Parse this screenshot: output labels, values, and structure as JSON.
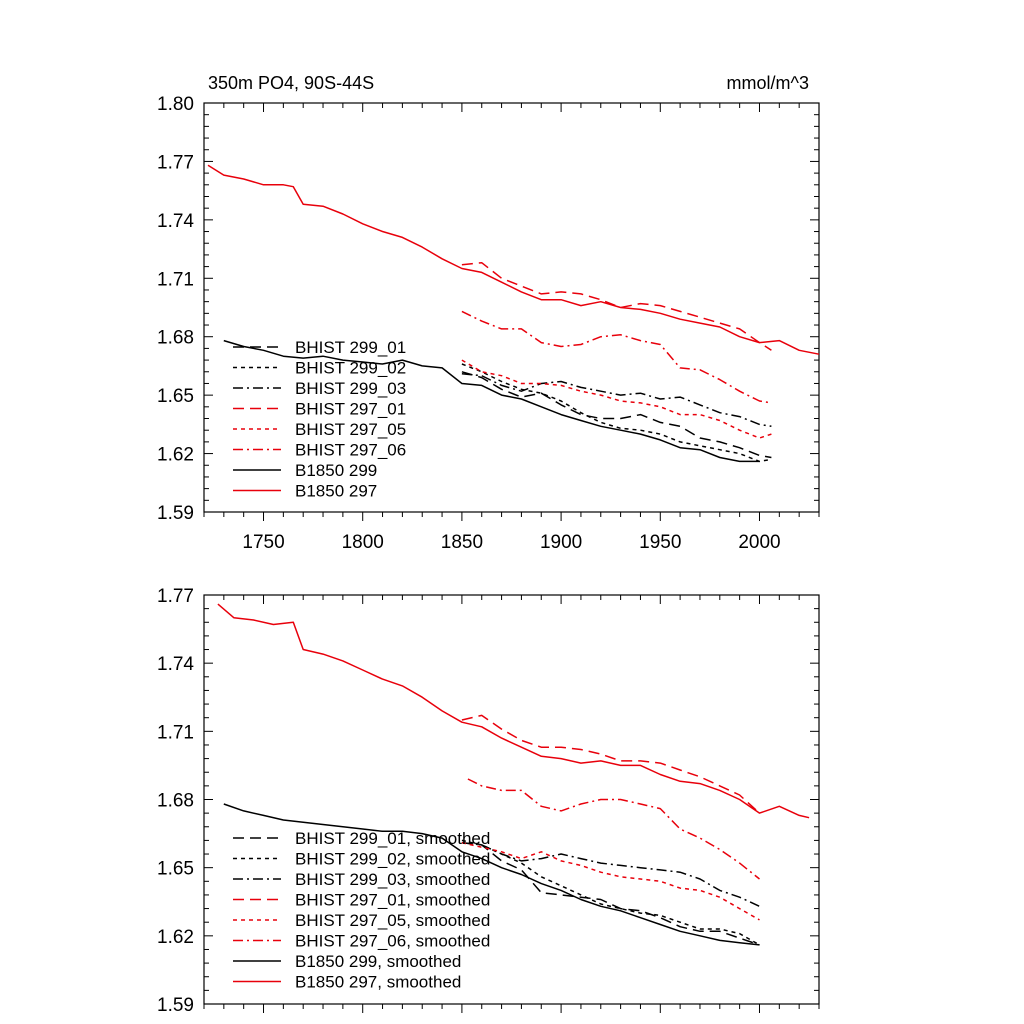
{
  "chart_data": [
    {
      "type": "line",
      "title": "350m PO4, 90S-44S",
      "units": "mmol/m^3",
      "xlim": [
        1720,
        2030
      ],
      "ylim": [
        1.59,
        1.8
      ],
      "xticks": [
        1750,
        1800,
        1850,
        1900,
        1950,
        2000
      ],
      "xtick_labels": [
        "1750",
        "1800",
        "1850",
        "1900",
        "1950",
        "2000"
      ],
      "yticks": [
        1.59,
        1.62,
        1.65,
        1.68,
        1.71,
        1.74,
        1.77,
        1.8
      ],
      "ytick_labels": [
        "1.59",
        "1.62",
        "1.65",
        "1.68",
        "1.71",
        "1.74",
        "1.77",
        "1.80"
      ],
      "legend_position": "lower-left",
      "series": [
        {
          "name": "BHIST 299_01",
          "color": "#000000",
          "dash": "long-dash",
          "x": [
            1850,
            1860,
            1870,
            1880,
            1890,
            1900,
            1910,
            1920,
            1930,
            1940,
            1950,
            1960,
            1970,
            1980,
            1990,
            2000,
            2006
          ],
          "y": [
            1.662,
            1.659,
            1.653,
            1.649,
            1.651,
            1.645,
            1.64,
            1.638,
            1.638,
            1.64,
            1.636,
            1.634,
            1.628,
            1.626,
            1.623,
            1.619,
            1.618
          ]
        },
        {
          "name": "BHIST 299_02",
          "color": "#000000",
          "dash": "short-dash",
          "x": [
            1850,
            1860,
            1870,
            1880,
            1890,
            1900,
            1910,
            1920,
            1930,
            1940,
            1950,
            1960,
            1970,
            1980,
            1990,
            2000,
            2006
          ],
          "y": [
            1.666,
            1.662,
            1.657,
            1.653,
            1.651,
            1.647,
            1.641,
            1.636,
            1.633,
            1.632,
            1.63,
            1.626,
            1.624,
            1.622,
            1.62,
            1.616,
            1.617
          ]
        },
        {
          "name": "BHIST 299_03",
          "color": "#000000",
          "dash": "dash-dot",
          "x": [
            1850,
            1860,
            1870,
            1880,
            1890,
            1900,
            1910,
            1920,
            1930,
            1940,
            1950,
            1960,
            1970,
            1980,
            1990,
            2000,
            2006
          ],
          "y": [
            1.661,
            1.66,
            1.655,
            1.652,
            1.656,
            1.657,
            1.654,
            1.652,
            1.65,
            1.651,
            1.648,
            1.649,
            1.645,
            1.641,
            1.639,
            1.635,
            1.634
          ]
        },
        {
          "name": "BHIST 297_01",
          "color": "#e8000b",
          "dash": "long-dash",
          "x": [
            1850,
            1860,
            1870,
            1880,
            1890,
            1900,
            1910,
            1920,
            1930,
            1940,
            1950,
            1960,
            1970,
            1980,
            1990,
            2000,
            2006
          ],
          "y": [
            1.717,
            1.718,
            1.71,
            1.706,
            1.702,
            1.703,
            1.702,
            1.699,
            1.695,
            1.697,
            1.696,
            1.693,
            1.69,
            1.687,
            1.684,
            1.677,
            1.673
          ]
        },
        {
          "name": "BHIST 297_05",
          "color": "#e8000b",
          "dash": "short-dash",
          "x": [
            1850,
            1860,
            1870,
            1880,
            1890,
            1900,
            1910,
            1920,
            1930,
            1940,
            1950,
            1960,
            1970,
            1980,
            1990,
            2000,
            2006
          ],
          "y": [
            1.668,
            1.662,
            1.66,
            1.656,
            1.656,
            1.655,
            1.652,
            1.65,
            1.647,
            1.646,
            1.644,
            1.64,
            1.64,
            1.637,
            1.632,
            1.628,
            1.63
          ]
        },
        {
          "name": "BHIST 297_06",
          "color": "#e8000b",
          "dash": "dash-dot",
          "x": [
            1850,
            1860,
            1870,
            1880,
            1890,
            1900,
            1910,
            1920,
            1930,
            1940,
            1950,
            1960,
            1970,
            1980,
            1990,
            2000,
            2006
          ],
          "y": [
            1.693,
            1.688,
            1.684,
            1.684,
            1.677,
            1.675,
            1.676,
            1.68,
            1.681,
            1.678,
            1.676,
            1.664,
            1.663,
            1.658,
            1.652,
            1.647,
            1.646
          ]
        },
        {
          "name": "B1850 299",
          "color": "#000000",
          "dash": "solid",
          "x": [
            1730,
            1740,
            1750,
            1760,
            1770,
            1780,
            1790,
            1800,
            1810,
            1820,
            1830,
            1840,
            1850,
            1860,
            1870,
            1880,
            1890,
            1900,
            1910,
            1920,
            1930,
            1940,
            1950,
            1960,
            1970,
            1980,
            1990,
            2000
          ],
          "y": [
            1.678,
            1.675,
            1.673,
            1.67,
            1.669,
            1.67,
            1.668,
            1.667,
            1.666,
            1.668,
            1.665,
            1.664,
            1.656,
            1.655,
            1.65,
            1.648,
            1.644,
            1.64,
            1.637,
            1.634,
            1.632,
            1.63,
            1.627,
            1.623,
            1.622,
            1.618,
            1.616,
            1.616
          ]
        },
        {
          "name": "B1850 297",
          "color": "#e8000b",
          "dash": "solid",
          "x": [
            1722,
            1730,
            1740,
            1750,
            1760,
            1765,
            1770,
            1780,
            1790,
            1800,
            1810,
            1820,
            1830,
            1840,
            1850,
            1860,
            1870,
            1880,
            1890,
            1900,
            1910,
            1920,
            1930,
            1940,
            1950,
            1960,
            1970,
            1980,
            1990,
            2000,
            2010,
            2020,
            2030
          ],
          "y": [
            1.768,
            1.763,
            1.761,
            1.758,
            1.758,
            1.757,
            1.748,
            1.747,
            1.743,
            1.738,
            1.734,
            1.731,
            1.726,
            1.72,
            1.715,
            1.713,
            1.708,
            1.703,
            1.699,
            1.699,
            1.696,
            1.698,
            1.695,
            1.694,
            1.692,
            1.689,
            1.687,
            1.685,
            1.68,
            1.677,
            1.678,
            1.673,
            1.671
          ]
        }
      ]
    },
    {
      "type": "line",
      "title": "",
      "xlim": [
        1720,
        2030
      ],
      "ylim": [
        1.59,
        1.77
      ],
      "xticks": [
        1750,
        1800,
        1850,
        1900,
        1950,
        2000
      ],
      "yticks": [
        1.59,
        1.62,
        1.65,
        1.68,
        1.71,
        1.74,
        1.77
      ],
      "ytick_labels": [
        "1.59",
        "1.62",
        "1.65",
        "1.68",
        "1.71",
        "1.74",
        "1.77"
      ],
      "legend_position": "lower-left",
      "series": [
        {
          "name": "BHIST 299_01, smoothed",
          "color": "#000000",
          "dash": "long-dash",
          "x": [
            1850,
            1860,
            1870,
            1880,
            1890,
            1900,
            1910,
            1920,
            1930,
            1940,
            1950,
            1960,
            1970,
            1980,
            1990,
            2000
          ],
          "y": [
            1.661,
            1.66,
            1.653,
            1.649,
            1.639,
            1.638,
            1.637,
            1.636,
            1.632,
            1.631,
            1.628,
            1.624,
            1.622,
            1.622,
            1.619,
            1.616
          ]
        },
        {
          "name": "BHIST 299_02, smoothed",
          "color": "#000000",
          "dash": "short-dash",
          "x": [
            1850,
            1860,
            1870,
            1880,
            1890,
            1900,
            1910,
            1920,
            1930,
            1940,
            1950,
            1960,
            1970,
            1980,
            1990,
            2000
          ],
          "y": [
            1.662,
            1.66,
            1.656,
            1.652,
            1.646,
            1.642,
            1.638,
            1.634,
            1.632,
            1.63,
            1.629,
            1.626,
            1.623,
            1.623,
            1.621,
            1.616
          ]
        },
        {
          "name": "BHIST 299_03, smoothed",
          "color": "#000000",
          "dash": "dash-dot",
          "x": [
            1850,
            1860,
            1870,
            1880,
            1890,
            1900,
            1910,
            1920,
            1930,
            1940,
            1950,
            1960,
            1970,
            1980,
            1990,
            2000
          ],
          "y": [
            1.661,
            1.66,
            1.656,
            1.653,
            1.654,
            1.656,
            1.654,
            1.652,
            1.651,
            1.65,
            1.649,
            1.648,
            1.645,
            1.64,
            1.637,
            1.633
          ]
        },
        {
          "name": "BHIST 297_01, smoothed",
          "color": "#e8000b",
          "dash": "long-dash",
          "x": [
            1850,
            1860,
            1870,
            1880,
            1890,
            1900,
            1910,
            1920,
            1930,
            1940,
            1950,
            1960,
            1970,
            1980,
            1990,
            2000
          ],
          "y": [
            1.715,
            1.717,
            1.711,
            1.706,
            1.703,
            1.703,
            1.702,
            1.7,
            1.697,
            1.697,
            1.696,
            1.693,
            1.69,
            1.686,
            1.682,
            1.674
          ]
        },
        {
          "name": "BHIST 297_05, smoothed",
          "color": "#e8000b",
          "dash": "short-dash",
          "x": [
            1850,
            1860,
            1870,
            1880,
            1890,
            1900,
            1910,
            1920,
            1930,
            1940,
            1950,
            1960,
            1970,
            1980,
            1990,
            2000
          ],
          "y": [
            1.661,
            1.659,
            1.657,
            1.654,
            1.657,
            1.653,
            1.651,
            1.648,
            1.646,
            1.645,
            1.644,
            1.641,
            1.64,
            1.637,
            1.632,
            1.627
          ]
        },
        {
          "name": "BHIST 297_06, smoothed",
          "color": "#e8000b",
          "dash": "dash-dot",
          "x": [
            1853,
            1860,
            1870,
            1880,
            1890,
            1900,
            1910,
            1920,
            1930,
            1940,
            1950,
            1960,
            1970,
            1980,
            1990,
            2000
          ],
          "y": [
            1.689,
            1.686,
            1.684,
            1.684,
            1.677,
            1.675,
            1.678,
            1.68,
            1.68,
            1.678,
            1.676,
            1.667,
            1.663,
            1.658,
            1.652,
            1.645
          ]
        },
        {
          "name": "B1850 299, smoothed",
          "color": "#000000",
          "dash": "solid",
          "x": [
            1730,
            1740,
            1750,
            1760,
            1770,
            1780,
            1790,
            1800,
            1810,
            1820,
            1830,
            1840,
            1850,
            1860,
            1870,
            1880,
            1890,
            1900,
            1910,
            1920,
            1930,
            1940,
            1950,
            1960,
            1970,
            1980,
            1990,
            2000
          ],
          "y": [
            1.678,
            1.675,
            1.673,
            1.671,
            1.67,
            1.669,
            1.668,
            1.667,
            1.666,
            1.666,
            1.665,
            1.663,
            1.657,
            1.654,
            1.65,
            1.647,
            1.643,
            1.64,
            1.636,
            1.633,
            1.631,
            1.628,
            1.625,
            1.622,
            1.62,
            1.618,
            1.617,
            1.616
          ]
        },
        {
          "name": "B1850 297, smoothed",
          "color": "#e8000b",
          "dash": "solid",
          "x": [
            1727,
            1735,
            1745,
            1755,
            1765,
            1770,
            1780,
            1790,
            1800,
            1810,
            1820,
            1830,
            1840,
            1850,
            1860,
            1870,
            1880,
            1890,
            1900,
            1910,
            1920,
            1930,
            1940,
            1950,
            1960,
            1970,
            1980,
            1990,
            2000,
            2010,
            2020,
            2025
          ],
          "y": [
            1.766,
            1.76,
            1.759,
            1.757,
            1.758,
            1.746,
            1.744,
            1.741,
            1.737,
            1.733,
            1.73,
            1.725,
            1.719,
            1.714,
            1.712,
            1.707,
            1.703,
            1.699,
            1.698,
            1.696,
            1.697,
            1.695,
            1.695,
            1.691,
            1.688,
            1.687,
            1.684,
            1.68,
            1.674,
            1.677,
            1.673,
            1.672
          ]
        }
      ]
    }
  ]
}
